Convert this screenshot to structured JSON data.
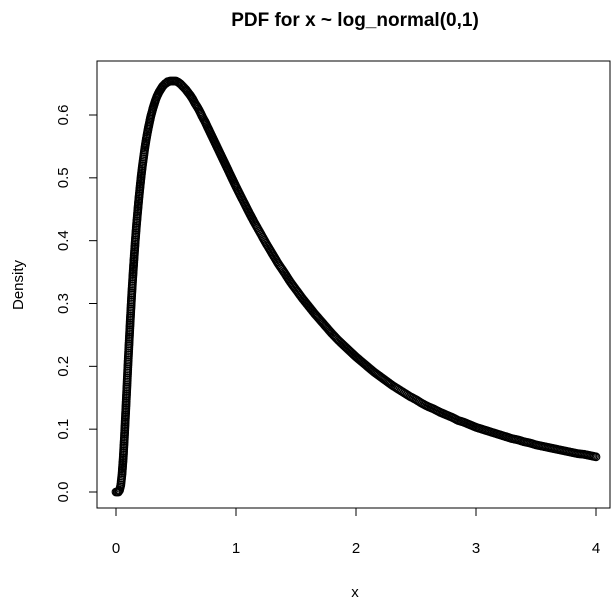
{
  "chart_data": {
    "type": "scatter",
    "title": "PDF for x ~ log_normal(0,1)",
    "xlabel": "x",
    "ylabel": "Density",
    "xlim": [
      0,
      4
    ],
    "ylim": [
      0,
      0.66
    ],
    "x_ticks": [
      "0",
      "1",
      "2",
      "3",
      "4"
    ],
    "y_ticks": [
      "0.0",
      "0.1",
      "0.2",
      "0.3",
      "0.4",
      "0.5",
      "0.6"
    ],
    "grid": false,
    "legend": "none",
    "marker": "open-circle",
    "marker_color": "#000000",
    "series": [
      {
        "x": [
          0.0,
          0.01,
          0.02,
          0.03,
          0.04,
          0.05,
          0.06,
          0.07,
          0.08,
          0.09,
          0.1,
          0.11,
          0.12,
          0.13,
          0.14,
          0.15,
          0.16,
          0.17,
          0.18,
          0.19,
          0.2,
          0.21,
          0.22,
          0.23,
          0.24,
          0.25,
          0.26,
          0.27,
          0.28,
          0.29,
          0.3,
          0.31,
          0.32,
          0.33,
          0.34,
          0.35,
          0.36,
          0.37,
          0.38,
          0.39,
          0.4,
          0.41,
          0.42,
          0.43,
          0.44,
          0.45,
          0.46,
          0.47,
          0.48,
          0.49,
          0.5,
          0.52,
          0.54,
          0.56,
          0.58,
          0.6,
          0.62,
          0.64,
          0.66,
          0.68,
          0.7,
          0.72,
          0.74,
          0.76,
          0.78,
          0.8,
          0.82,
          0.84,
          0.86,
          0.88,
          0.9,
          0.92,
          0.94,
          0.96,
          0.98,
          1.0,
          1.05,
          1.1,
          1.15,
          1.2,
          1.25,
          1.3,
          1.35,
          1.4,
          1.45,
          1.5,
          1.55,
          1.6,
          1.65,
          1.7,
          1.75,
          1.8,
          1.85,
          1.9,
          1.95,
          2.0,
          2.05,
          2.1,
          2.15,
          2.2,
          2.25,
          2.3,
          2.35,
          2.4,
          2.45,
          2.5,
          2.55,
          2.6,
          2.65,
          2.7,
          2.75,
          2.8,
          2.85,
          2.9,
          2.95,
          3.0,
          3.05,
          3.1,
          3.15,
          3.2,
          3.25,
          3.3,
          3.35,
          3.4,
          3.45,
          3.5,
          3.55,
          3.6,
          3.65,
          3.7,
          3.75,
          3.8,
          3.85,
          3.9,
          3.95,
          4.0
        ],
        "y": [
          0.0,
          0.0,
          0.0,
          0.003,
          0.011,
          0.028,
          0.054,
          0.087,
          0.125,
          0.164,
          0.204,
          0.241,
          0.277,
          0.311,
          0.342,
          0.371,
          0.398,
          0.423,
          0.445,
          0.466,
          0.485,
          0.503,
          0.519,
          0.533,
          0.547,
          0.559,
          0.57,
          0.58,
          0.589,
          0.598,
          0.605,
          0.612,
          0.618,
          0.624,
          0.629,
          0.633,
          0.637,
          0.64,
          0.643,
          0.646,
          0.648,
          0.65,
          0.651,
          0.653,
          0.653,
          0.654,
          0.654,
          0.654,
          0.654,
          0.654,
          0.654,
          0.652,
          0.649,
          0.645,
          0.641,
          0.636,
          0.631,
          0.625,
          0.618,
          0.612,
          0.605,
          0.597,
          0.59,
          0.582,
          0.574,
          0.566,
          0.558,
          0.55,
          0.542,
          0.534,
          0.526,
          0.518,
          0.51,
          0.502,
          0.494,
          0.486,
          0.467,
          0.448,
          0.43,
          0.413,
          0.396,
          0.38,
          0.364,
          0.35,
          0.335,
          0.322,
          0.309,
          0.297,
          0.285,
          0.274,
          0.263,
          0.252,
          0.242,
          0.233,
          0.224,
          0.215,
          0.207,
          0.199,
          0.191,
          0.184,
          0.177,
          0.17,
          0.164,
          0.158,
          0.152,
          0.147,
          0.141,
          0.136,
          0.132,
          0.127,
          0.123,
          0.119,
          0.114,
          0.111,
          0.107,
          0.103,
          0.1,
          0.097,
          0.094,
          0.091,
          0.088,
          0.085,
          0.083,
          0.08,
          0.078,
          0.075,
          0.073,
          0.071,
          0.069,
          0.067,
          0.065,
          0.063,
          0.061,
          0.06,
          0.058,
          0.056
        ]
      }
    ]
  }
}
